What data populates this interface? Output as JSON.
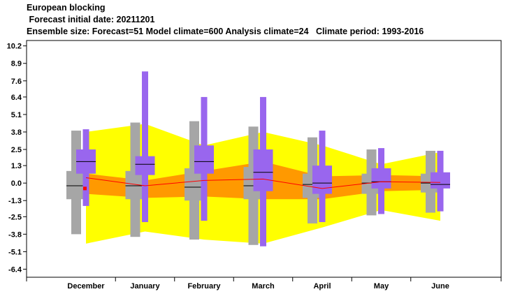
{
  "chart_data": {
    "type": "box",
    "title": "European blocking",
    "subtitle_lines": [
      " Forecast initial date: 20211201",
      "Ensemble size: Forecast=51 Model climate=600 Analysis climate=24   Climate period: 1993-2016"
    ],
    "categories": [
      "December",
      "January",
      "February",
      "March",
      "April",
      "May",
      "June"
    ],
    "yticks": [
      10.2,
      8.9,
      7.6,
      6.4,
      5.1,
      3.8,
      2.5,
      1.3,
      0.0,
      -1.3,
      -2.5,
      -3.8,
      -5.1,
      -6.4
    ],
    "ytick_labels": [
      "10.2",
      "8.9",
      "7.6",
      "6.4",
      "5.1",
      "3.8",
      "2.5",
      "1.3",
      "0.0",
      "-1.3",
      "-2.5",
      "-3.8",
      "-5.1",
      "-6.4"
    ],
    "ylim": [
      -7.0,
      10.6
    ],
    "climate_outer_band": {
      "upper": [
        3.8,
        4.4,
        2.8,
        3.8,
        2.8,
        1.4,
        2.3
      ],
      "lower": [
        -4.5,
        -3.6,
        -4.2,
        -4.5,
        -3.3,
        -2.0,
        -2.8
      ]
    },
    "climate_inner_band": {
      "upper": [
        0.7,
        0.2,
        0.9,
        1.6,
        0.5,
        0.6,
        0.5
      ],
      "lower": [
        -0.8,
        -1.1,
        -1.0,
        -1.2,
        -1.2,
        -0.6,
        -0.5
      ]
    },
    "climate_median": [
      0.4,
      -0.2,
      0.2,
      0.3,
      -0.4,
      0.1,
      0.05
    ],
    "analysis_climate_boxes": [
      {
        "min": -3.8,
        "q1": -1.2,
        "median": -0.2,
        "q3": 0.9,
        "max": 3.9
      },
      {
        "min": -4.0,
        "q1": -1.2,
        "median": -0.2,
        "q3": 0.9,
        "max": 4.5
      },
      {
        "min": -4.2,
        "q1": -1.3,
        "median": -0.3,
        "q3": 1.1,
        "max": 4.6
      },
      {
        "min": -4.6,
        "q1": -1.2,
        "median": -0.2,
        "q3": 1.2,
        "max": 4.2
      },
      {
        "min": -3.0,
        "q1": -1.1,
        "median": -0.1,
        "q3": 0.7,
        "max": 3.4
      },
      {
        "min": -2.4,
        "q1": -0.8,
        "median": 0.0,
        "q3": 0.7,
        "max": 2.5
      },
      {
        "min": -2.2,
        "q1": -0.7,
        "median": 0.0,
        "q3": 0.7,
        "max": 2.4
      }
    ],
    "forecast_boxes": [
      {
        "min": -1.7,
        "q1": 0.7,
        "median": 1.6,
        "q3": 2.5,
        "max": 4.0
      },
      {
        "min": -2.9,
        "q1": 0.6,
        "median": 1.4,
        "q3": 2.0,
        "max": 8.3
      },
      {
        "min": -2.8,
        "q1": 0.7,
        "median": 1.6,
        "q3": 2.8,
        "max": 6.4
      },
      {
        "min": -4.7,
        "q1": -0.6,
        "median": 0.8,
        "q3": 2.5,
        "max": 6.4
      },
      {
        "min": -2.9,
        "q1": -0.8,
        "median": 0.0,
        "q3": 1.3,
        "max": 3.9
      },
      {
        "min": -2.3,
        "q1": -0.4,
        "median": 0.1,
        "q3": 1.1,
        "max": 2.6
      },
      {
        "min": -2.1,
        "q1": -0.4,
        "median": -0.1,
        "q3": 0.8,
        "max": 2.4
      }
    ],
    "analysis_marker": {
      "category": "December",
      "value": -0.4
    },
    "colors": {
      "outer_band": "#ffff00",
      "inner_band": "#ff9900",
      "median_line": "#ff0000",
      "analysis_box": "#a6a6a6",
      "forecast_box": "#9966ee",
      "median_tick": "#000000",
      "marker": "#ff0000"
    },
    "grid": false,
    "legend": "none"
  }
}
